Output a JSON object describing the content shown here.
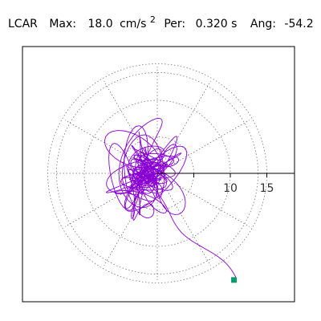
{
  "header": {
    "station": "LCAR",
    "max_label": "Max:",
    "max_value": "18.0",
    "max_unit": "cm/s",
    "max_unit_exp": "2",
    "per_label": "Per:",
    "per_value": "0.320 s",
    "ang_label": "Ang:",
    "ang_value": "-54.2"
  },
  "chart_data": {
    "type": "scatter",
    "subtype": "polar-particle-motion",
    "title": "LCAR   Max:  18.0 cm/s2  Per:  0.320 s   Ang: -54.2",
    "r_ticks": [
      5,
      10,
      15
    ],
    "r_tick_labels": [
      "10",
      "15"
    ],
    "r_max": 20,
    "radial_spokes_deg": [
      0,
      30,
      60,
      90,
      120,
      150,
      180,
      210,
      240,
      270,
      300,
      330
    ],
    "grid": true,
    "grid_style": "dotted",
    "trace_color": "#8a00d4",
    "endpoint_color": "#0a9a6e",
    "max_amplitude": 18.0,
    "max_angle_deg": -54.2,
    "endpoint": {
      "x": 10.5,
      "y": -14.6
    },
    "orbit_seed": 7,
    "orbit_points": 1400
  }
}
